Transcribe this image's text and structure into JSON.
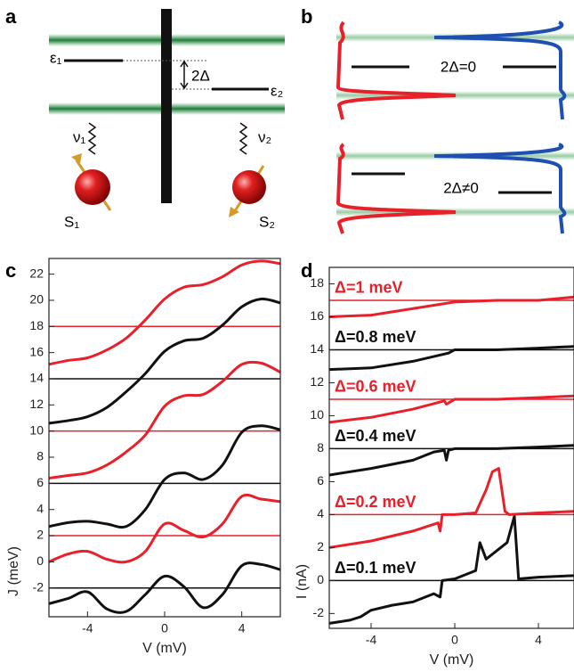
{
  "panel_labels": [
    "a",
    "b",
    "c",
    "d"
  ],
  "diagram_a": {
    "epsilon_1": "ε₁",
    "gap": "2Δ",
    "epsilon_2": "ε₂",
    "nu_1": "ν₁",
    "nu_2": "ν₂",
    "spin_1": "S₁",
    "spin_2": "S₂"
  },
  "diagram_b": {
    "top": "2Δ=0",
    "bottom": "2Δ≠0"
  },
  "chart_data": [
    {
      "type": "line",
      "smooth": true,
      "xlabel": "V (mV)",
      "ylabel": "J (meV)",
      "xlim": [
        -6,
        6
      ],
      "ylim": [
        -4.2,
        23.2
      ],
      "xticks": [
        -4,
        0,
        4
      ],
      "yticks": [
        -2,
        0,
        2,
        4,
        6,
        8,
        10,
        12,
        14,
        16,
        18,
        20,
        22
      ],
      "x": [
        -6,
        -5,
        -4,
        -3,
        -2,
        -1,
        0,
        1,
        2,
        3,
        4,
        5,
        6
      ],
      "baselines": [
        {
          "value": -2,
          "color": "#111111"
        },
        {
          "value": 2,
          "color": "#e8202a"
        },
        {
          "value": 6,
          "color": "#111111"
        },
        {
          "value": 10,
          "color": "#e8202a"
        },
        {
          "value": 14,
          "color": "#111111"
        },
        {
          "value": 18,
          "color": "#e8202a"
        }
      ],
      "series": [
        {
          "color": "#111111",
          "values": [
            -3.2,
            -2.8,
            -2.3,
            -3.6,
            -3.8,
            -2.5,
            -1.1,
            -1.9,
            -3.5,
            -2.5,
            -0.3,
            -0.2,
            -0.6
          ]
        },
        {
          "color": "#e8202a",
          "values": [
            0.0,
            0.6,
            0.8,
            0.2,
            0.0,
            0.8,
            2.9,
            2.4,
            1.9,
            2.9,
            5.0,
            4.8,
            4.6
          ]
        },
        {
          "color": "#111111",
          "values": [
            2.7,
            3.0,
            3.1,
            2.9,
            2.7,
            4.0,
            6.3,
            6.8,
            6.3,
            7.4,
            9.9,
            10.4,
            10.1
          ]
        },
        {
          "color": "#e8202a",
          "values": [
            6.4,
            6.6,
            6.8,
            7.4,
            8.4,
            9.7,
            11.9,
            12.7,
            12.8,
            13.8,
            15.1,
            15.2,
            14.5
          ]
        },
        {
          "color": "#111111",
          "values": [
            10.6,
            10.8,
            11.1,
            11.8,
            13.0,
            14.4,
            16.1,
            16.9,
            17.1,
            18.1,
            19.5,
            20.1,
            19.8
          ]
        },
        {
          "color": "#e8202a",
          "values": [
            15.1,
            15.4,
            15.6,
            16.2,
            17.1,
            18.5,
            20.1,
            21.0,
            21.2,
            21.8,
            22.7,
            23.0,
            22.8
          ]
        }
      ]
    },
    {
      "type": "line",
      "smooth": false,
      "xlabel": "V (mV)",
      "ylabel": "I (nA)",
      "xlim": [
        -6,
        5.7
      ],
      "ylim": [
        -2.9,
        19
      ],
      "xticks": [
        -4,
        0,
        4
      ],
      "yticks": [
        -2,
        0,
        2,
        4,
        6,
        8,
        10,
        12,
        14,
        16,
        18
      ],
      "baselines": [
        {
          "value": 0,
          "color": "#111111"
        },
        {
          "value": 4,
          "color": "#e8202a"
        },
        {
          "value": 8,
          "color": "#111111"
        },
        {
          "value": 11,
          "color": "#e8202a"
        },
        {
          "value": 14,
          "color": "#111111"
        },
        {
          "value": 17,
          "color": "#e8202a"
        }
      ],
      "series": [
        {
          "name": "Δ=0.1 meV",
          "color": "#111111",
          "x": [
            -6,
            -5,
            -4.5,
            -4,
            -3,
            -2,
            -1,
            -0.7,
            -0.6,
            0,
            1,
            1.2,
            1.5,
            2,
            2.5,
            2.85,
            3.05,
            4,
            5.7
          ],
          "values": [
            -2.6,
            -2.4,
            -2.2,
            -1.8,
            -1.5,
            -1.3,
            -0.8,
            -1.0,
            0,
            0.1,
            0.6,
            2.3,
            1.3,
            1.8,
            2.3,
            3.9,
            0.1,
            0.2,
            0.3
          ]
        },
        {
          "name": "Δ=0.2 meV",
          "color": "#e8202a",
          "x": [
            -6,
            -4,
            -2,
            -0.8,
            -0.7,
            -0.6,
            0,
            1,
            1.5,
            1.8,
            2.1,
            2.4,
            2.6,
            4,
            5.7
          ],
          "values": [
            2,
            2.4,
            3.0,
            3.5,
            3.0,
            4.0,
            4.0,
            4.1,
            5.5,
            6.6,
            6.8,
            4.2,
            4.0,
            4.1,
            4.2
          ]
        },
        {
          "name": "Δ=0.4 meV",
          "color": "#111111",
          "x": [
            -6,
            -4,
            -2,
            -1,
            -0.5,
            -0.4,
            -0.3,
            0,
            2,
            4,
            5.7
          ],
          "values": [
            6.4,
            6.8,
            7.3,
            7.8,
            7.9,
            7.3,
            7.9,
            8.0,
            8.0,
            8.1,
            8.2
          ]
        },
        {
          "name": "Δ=0.6 meV",
          "color": "#e8202a",
          "x": [
            -6,
            -4,
            -2,
            -0.5,
            -0.4,
            0,
            2,
            4,
            5.7
          ],
          "values": [
            9.6,
            9.9,
            10.4,
            10.9,
            10.7,
            11.0,
            11.0,
            11.1,
            11.2
          ]
        },
        {
          "name": "Δ=0.8 meV",
          "color": "#111111",
          "x": [
            -6,
            -4,
            -2,
            -0.3,
            0,
            2,
            4,
            5.7
          ],
          "values": [
            12.8,
            12.9,
            13.3,
            13.8,
            14.0,
            14.0,
            14.1,
            14.2
          ]
        },
        {
          "name": "Δ=1 meV",
          "color": "#e8202a",
          "x": [
            -6,
            -4,
            -2,
            0,
            2,
            4,
            5.7
          ],
          "values": [
            16.0,
            16.1,
            16.5,
            16.9,
            17.0,
            17.0,
            17.2
          ]
        }
      ]
    }
  ]
}
